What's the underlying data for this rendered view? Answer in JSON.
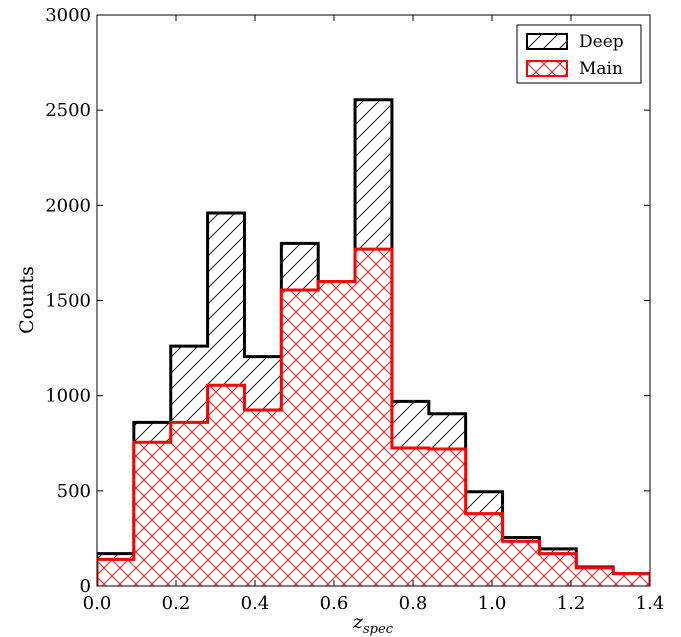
{
  "chart_data": {
    "type": "histogram",
    "xlabel": "z",
    "xlabel_sub": "spec",
    "ylabel": "Counts",
    "xlim": [
      0.0,
      1.4
    ],
    "ylim": [
      0,
      3000
    ],
    "x_ticks": [
      0.0,
      0.2,
      0.4,
      0.6,
      0.8,
      1.0,
      1.2,
      1.4
    ],
    "x_tick_labels": [
      "0.0",
      "0.2",
      "0.4",
      "0.6",
      "0.8",
      "1.0",
      "1.2",
      "1.4"
    ],
    "y_ticks": [
      0,
      500,
      1000,
      1500,
      2000,
      2500,
      3000
    ],
    "y_tick_labels": [
      "0",
      "500",
      "1000",
      "1500",
      "2000",
      "2500",
      "3000"
    ],
    "bin_edges": [
      0.0,
      0.0933,
      0.1867,
      0.28,
      0.3733,
      0.4667,
      0.56,
      0.6533,
      0.7467,
      0.84,
      0.9333,
      1.0267,
      1.12,
      1.2133,
      1.3067,
      1.4
    ],
    "series": [
      {
        "name": "Deep",
        "color": "#000000",
        "hatch": "forward-diagonal",
        "values": [
          170,
          860,
          1260,
          1960,
          1205,
          1800,
          1520,
          2555,
          970,
          905,
          495,
          255,
          195,
          100,
          65
        ]
      },
      {
        "name": "Main",
        "color": "#ff0000",
        "hatch": "crosshatch",
        "values": [
          140,
          755,
          860,
          1055,
          925,
          1555,
          1600,
          1770,
          725,
          720,
          380,
          235,
          170,
          95,
          65
        ]
      }
    ],
    "legend_position": "top-right",
    "grid": false
  }
}
